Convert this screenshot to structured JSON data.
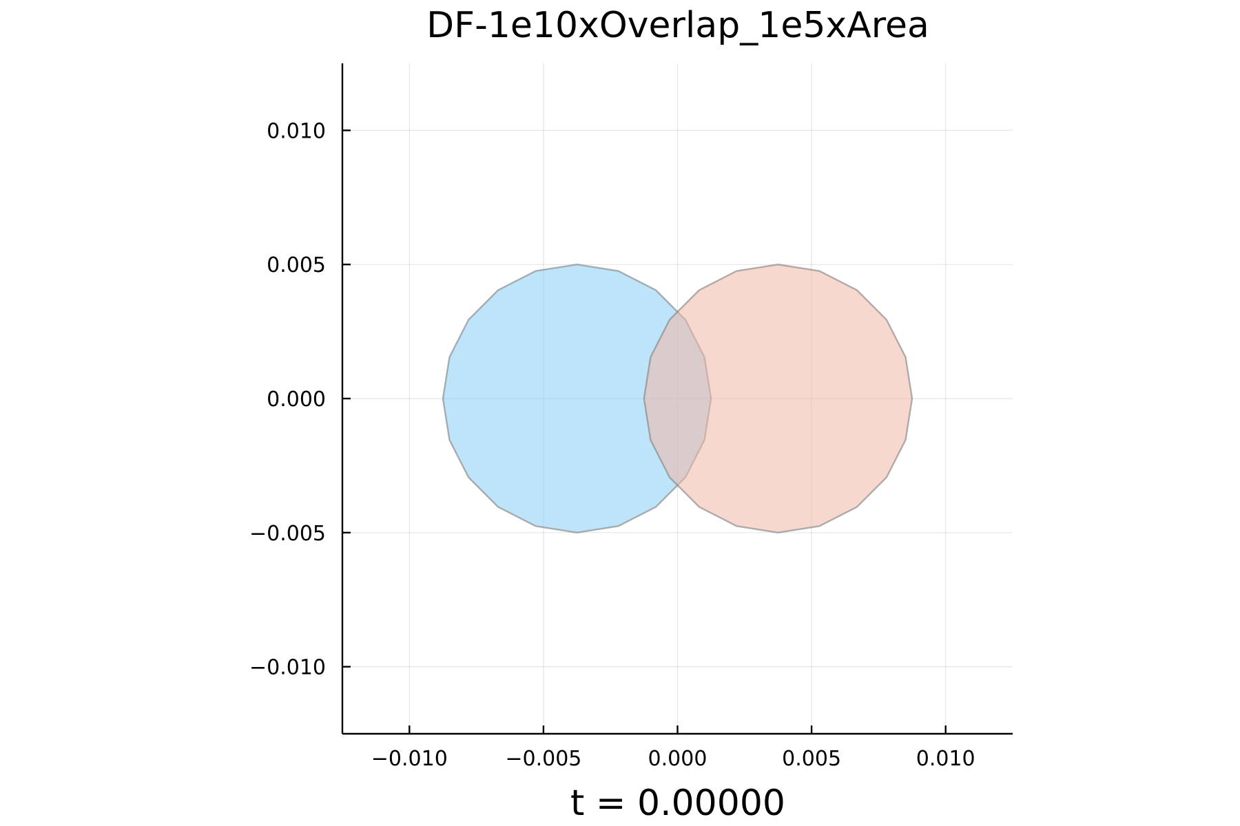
{
  "chart_data": {
    "type": "area",
    "title": "DF-1e10xOverlap_1e5xArea",
    "xlabel": "t = 0.00000",
    "ylabel": "",
    "xlim": [
      -0.0125,
      0.0125
    ],
    "ylim": [
      -0.0125,
      0.0125
    ],
    "aspect_ratio": "equal",
    "grid": true,
    "legend": "none",
    "xticks": [
      -0.01,
      -0.005,
      0.0,
      0.005,
      0.01
    ],
    "xtick_labels": [
      "−0.010",
      "−0.005",
      "0.000",
      "0.005",
      "0.010"
    ],
    "yticks": [
      -0.01,
      -0.005,
      0.0,
      0.005,
      0.01
    ],
    "ytick_labels": [
      "−0.010",
      "−0.005",
      "0.000",
      "0.005",
      "0.010"
    ],
    "series": [
      {
        "shape": "polygon",
        "center": [
          -0.00375,
          0.0
        ],
        "radius": 0.005,
        "vertices": 20,
        "fill": "#88cdf5",
        "fill_opacity": 0.55,
        "stroke": "#7f7f7f",
        "stroke_opacity": 0.6
      },
      {
        "shape": "polygon",
        "center": [
          0.00375,
          0.0
        ],
        "radius": 0.005,
        "vertices": 20,
        "fill": "#f0b8a6",
        "fill_opacity": 0.55,
        "stroke": "#7f7f7f",
        "stroke_opacity": 0.6
      }
    ]
  }
}
